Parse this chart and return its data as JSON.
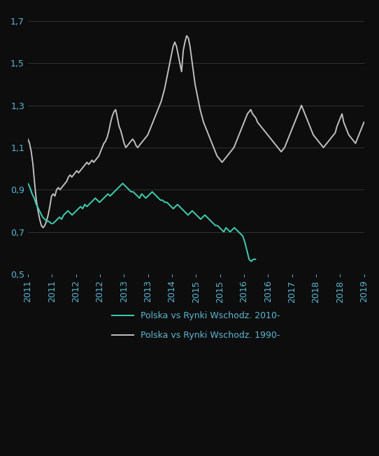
{
  "background_color": "#0d0d0d",
  "text_color": "#5bb8d4",
  "grid_color": "#333333",
  "line1_color": "#3ecfb2",
  "line2_color": "#c0c0c0",
  "ylim": [
    0.5,
    1.75
  ],
  "yticks": [
    0.5,
    0.7,
    0.9,
    1.1,
    1.3,
    1.5,
    1.7
  ],
  "ytick_labels": [
    "0,5",
    "0,7",
    "0,9",
    "1,1",
    "1,3",
    "1,5",
    "1,7"
  ],
  "xtick_labels": [
    "2011",
    "2011",
    "2012",
    "2012",
    "2013",
    "2013",
    "2014",
    "2015",
    "2015",
    "2016",
    "2016",
    "2017",
    "2018",
    "2018",
    "2019"
  ],
  "legend1": "Polska vs Rynki Wschodz. 2010-",
  "legend2": "Polska vs Rynki Wschodz. 1990-",
  "line1_lw": 1.4,
  "line2_lw": 1.4,
  "tick_fontsize": 9,
  "green_y": [
    0.93,
    0.91,
    0.88,
    0.86,
    0.83,
    0.81,
    0.79,
    0.77,
    0.76,
    0.75,
    0.75,
    0.74,
    0.74,
    0.75,
    0.76,
    0.77,
    0.76,
    0.78,
    0.79,
    0.8,
    0.79,
    0.78,
    0.79,
    0.8,
    0.81,
    0.82,
    0.81,
    0.83,
    0.82,
    0.83,
    0.84,
    0.85,
    0.86,
    0.85,
    0.84,
    0.85,
    0.86,
    0.87,
    0.88,
    0.87,
    0.88,
    0.89,
    0.9,
    0.91,
    0.92,
    0.93,
    0.92,
    0.91,
    0.9,
    0.89,
    0.89,
    0.88,
    0.87,
    0.86,
    0.88,
    0.87,
    0.86,
    0.87,
    0.88,
    0.89,
    0.88,
    0.87,
    0.86,
    0.85,
    0.85,
    0.84,
    0.84,
    0.83,
    0.82,
    0.81,
    0.82,
    0.83,
    0.82,
    0.81,
    0.8,
    0.79,
    0.78,
    0.79,
    0.8,
    0.79,
    0.78,
    0.77,
    0.76,
    0.77,
    0.78,
    0.77,
    0.76,
    0.75,
    0.74,
    0.73,
    0.73,
    0.72,
    0.71,
    0.7,
    0.72,
    0.71,
    0.7,
    0.71,
    0.72,
    0.71,
    0.7,
    0.69,
    0.68,
    0.65,
    0.61,
    0.57,
    0.56,
    0.57,
    0.57
  ],
  "gray_y": [
    1.14,
    1.12,
    1.08,
    1.02,
    0.93,
    0.85,
    0.8,
    0.76,
    0.73,
    0.72,
    0.73,
    0.75,
    0.78,
    0.82,
    0.87,
    0.88,
    0.87,
    0.9,
    0.91,
    0.9,
    0.91,
    0.92,
    0.93,
    0.94,
    0.96,
    0.97,
    0.96,
    0.97,
    0.98,
    0.99,
    0.98,
    0.99,
    1.0,
    1.01,
    1.02,
    1.03,
    1.02,
    1.03,
    1.04,
    1.03,
    1.04,
    1.05,
    1.06,
    1.08,
    1.1,
    1.12,
    1.13,
    1.15,
    1.18,
    1.22,
    1.25,
    1.27,
    1.28,
    1.24,
    1.2,
    1.18,
    1.15,
    1.12,
    1.1,
    1.11,
    1.12,
    1.13,
    1.14,
    1.13,
    1.11,
    1.1,
    1.11,
    1.12,
    1.13,
    1.14,
    1.15,
    1.16,
    1.18,
    1.2,
    1.22,
    1.24,
    1.26,
    1.28,
    1.3,
    1.32,
    1.35,
    1.38,
    1.42,
    1.46,
    1.5,
    1.54,
    1.58,
    1.6,
    1.58,
    1.54,
    1.5,
    1.46,
    1.56,
    1.6,
    1.63,
    1.62,
    1.58,
    1.52,
    1.46,
    1.4,
    1.36,
    1.32,
    1.28,
    1.25,
    1.22,
    1.2,
    1.18,
    1.16,
    1.14,
    1.12,
    1.1,
    1.08,
    1.06,
    1.05,
    1.04,
    1.03,
    1.04,
    1.05,
    1.06,
    1.07,
    1.08,
    1.09,
    1.1,
    1.12,
    1.14,
    1.16,
    1.18,
    1.2,
    1.22,
    1.24,
    1.26,
    1.27,
    1.28,
    1.26,
    1.25,
    1.24,
    1.22,
    1.21,
    1.2,
    1.19,
    1.18,
    1.17,
    1.16,
    1.15,
    1.14,
    1.13,
    1.12,
    1.11,
    1.1,
    1.09,
    1.08,
    1.09,
    1.1,
    1.12,
    1.14,
    1.16,
    1.18,
    1.2,
    1.22,
    1.24,
    1.26,
    1.28,
    1.3,
    1.28,
    1.26,
    1.24,
    1.22,
    1.2,
    1.18,
    1.16,
    1.15,
    1.14,
    1.13,
    1.12,
    1.11,
    1.1,
    1.11,
    1.12,
    1.13,
    1.14,
    1.15,
    1.16,
    1.17,
    1.2,
    1.22,
    1.24,
    1.26,
    1.22,
    1.2,
    1.18,
    1.16,
    1.15,
    1.14,
    1.13,
    1.12,
    1.14,
    1.16,
    1.18,
    1.2,
    1.22
  ]
}
